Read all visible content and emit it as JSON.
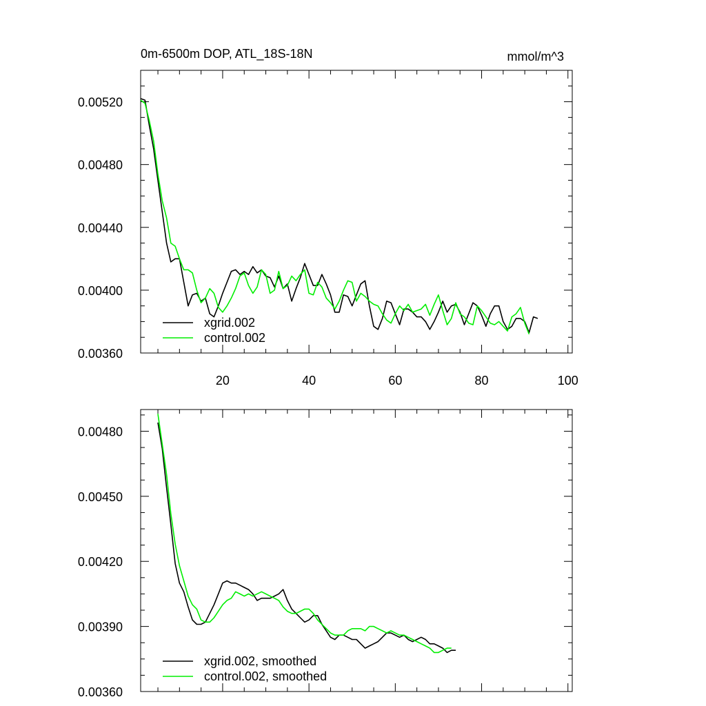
{
  "chart_data": [
    {
      "type": "line",
      "title": "0m-6500m DOP, ATL_18S-18N",
      "units": "mmol/m^3",
      "xlim": [
        1,
        101
      ],
      "ylim": [
        0.0036,
        0.0054
      ],
      "x_ticks": [
        20,
        40,
        60,
        80,
        100
      ],
      "x_tick_labels": [
        "20",
        "40",
        "60",
        "80",
        "100"
      ],
      "y_ticks": [
        0.0036,
        0.004,
        0.0044,
        0.0048,
        0.0052
      ],
      "y_tick_labels": [
        "0.00360",
        "0.00400",
        "0.00440",
        "0.00480",
        "0.00520"
      ],
      "legend_position": "bottom-left",
      "series": [
        {
          "name": "xgrid.002",
          "color": "#000000",
          "x_start": 1,
          "values": [
            0.00522,
            0.00521,
            0.00505,
            0.0049,
            0.0047,
            0.0045,
            0.0043,
            0.00418,
            0.0042,
            0.0042,
            0.00405,
            0.0039,
            0.00397,
            0.00398,
            0.00393,
            0.00395,
            0.00385,
            0.00383,
            0.0039,
            0.00398,
            0.00405,
            0.00412,
            0.00413,
            0.0041,
            0.00412,
            0.0041,
            0.00415,
            0.00411,
            0.00413,
            0.00409,
            0.00408,
            0.00402,
            0.00409,
            0.00401,
            0.00404,
            0.00393,
            0.00401,
            0.00408,
            0.00417,
            0.0041,
            0.00403,
            0.00403,
            0.0041,
            0.00404,
            0.00397,
            0.00386,
            0.00386,
            0.00397,
            0.00396,
            0.0039,
            0.00397,
            0.00404,
            0.00406,
            0.0039,
            0.00377,
            0.00375,
            0.00382,
            0.00393,
            0.00392,
            0.00385,
            0.00378,
            0.00388,
            0.00388,
            0.00386,
            0.00383,
            0.00383,
            0.0038,
            0.00375,
            0.0038,
            0.00386,
            0.00393,
            0.00386,
            0.0039,
            0.00391,
            0.00386,
            0.00378,
            0.00385,
            0.00392,
            0.0039,
            0.00384,
            0.00377,
            0.00385,
            0.0039,
            0.0039,
            0.0038,
            0.00375,
            0.00377,
            0.00382,
            0.00382,
            0.0038,
            0.00373,
            0.00383,
            0.00382
          ]
        },
        {
          "name": "control.002",
          "color": "#00ee00",
          "x_start": 1,
          "values": [
            0.00521,
            0.00519,
            0.00508,
            0.00495,
            0.00474,
            0.00457,
            0.00446,
            0.0043,
            0.00428,
            0.0042,
            0.00413,
            0.00413,
            0.00411,
            0.004,
            0.00392,
            0.00395,
            0.00401,
            0.00398,
            0.00389,
            0.00386,
            0.0039,
            0.00395,
            0.00401,
            0.00409,
            0.00411,
            0.00403,
            0.00398,
            0.00402,
            0.00413,
            0.0041,
            0.00398,
            0.004,
            0.00412,
            0.00401,
            0.00403,
            0.00409,
            0.00406,
            0.0041,
            0.00413,
            0.00398,
            0.00397,
            0.00405,
            0.00402,
            0.00395,
            0.00392,
            0.00388,
            0.00393,
            0.004,
            0.00406,
            0.00405,
            0.00393,
            0.00398,
            0.00396,
            0.00393,
            0.00391,
            0.0039,
            0.00385,
            0.00381,
            0.00379,
            0.00385,
            0.0039,
            0.00387,
            0.00391,
            0.00386,
            0.00387,
            0.00388,
            0.00391,
            0.00384,
            0.00391,
            0.00397,
            0.00387,
            0.00378,
            0.00382,
            0.00392,
            0.00385,
            0.00383,
            0.00379,
            0.00378,
            0.0039,
            0.00387,
            0.00383,
            0.00379,
            0.00378,
            0.0038,
            0.00377,
            0.00374,
            0.00383,
            0.00385,
            0.00389,
            0.00379,
            0.00372
          ]
        }
      ]
    },
    {
      "type": "line",
      "title": "",
      "xlim": [
        1,
        101
      ],
      "ylim": [
        0.0036,
        0.0049
      ],
      "x_ticks": [
        20,
        40,
        60,
        80,
        100
      ],
      "y_ticks": [
        0.0036,
        0.0039,
        0.0042,
        0.0045,
        0.0048
      ],
      "y_tick_labels": [
        "0.00360",
        "0.00390",
        "0.00420",
        "0.00450",
        "0.00480"
      ],
      "legend_position": "bottom-left",
      "series": [
        {
          "name": "xgrid.002, smoothed",
          "color": "#000000",
          "x_start": 5,
          "values": [
            0.00484,
            0.00472,
            0.00454,
            0.00437,
            0.00419,
            0.0041,
            0.00406,
            0.00399,
            0.00393,
            0.00391,
            0.00391,
            0.00392,
            0.00396,
            0.004,
            0.00405,
            0.0041,
            0.00411,
            0.0041,
            0.0041,
            0.00409,
            0.00408,
            0.00407,
            0.00405,
            0.00402,
            0.00403,
            0.00403,
            0.00403,
            0.00404,
            0.00405,
            0.00407,
            0.00402,
            0.00398,
            0.00396,
            0.00394,
            0.00392,
            0.00393,
            0.00395,
            0.00395,
            0.00391,
            0.00388,
            0.00385,
            0.00384,
            0.00386,
            0.00386,
            0.00385,
            0.00384,
            0.00384,
            0.00382,
            0.0038,
            0.00381,
            0.00382,
            0.00383,
            0.00385,
            0.00387,
            0.00387,
            0.00386,
            0.00385,
            0.00386,
            0.00384,
            0.00383,
            0.00384,
            0.00385,
            0.00384,
            0.00382,
            0.00382,
            0.00381,
            0.0038,
            0.00378,
            0.00379,
            0.00379
          ]
        },
        {
          "name": "control.002, smoothed",
          "color": "#00ee00",
          "x_start": 5,
          "values": [
            0.00488,
            0.00474,
            0.0046,
            0.00442,
            0.00428,
            0.00418,
            0.00411,
            0.00404,
            0.004,
            0.00398,
            0.00393,
            0.00392,
            0.00392,
            0.00394,
            0.00397,
            0.004,
            0.00402,
            0.00403,
            0.00406,
            0.00405,
            0.00404,
            0.00405,
            0.00404,
            0.00405,
            0.00406,
            0.00405,
            0.00404,
            0.00403,
            0.00402,
            0.00399,
            0.00397,
            0.00396,
            0.00396,
            0.00397,
            0.00398,
            0.00398,
            0.00396,
            0.00393,
            0.00391,
            0.00389,
            0.00387,
            0.00386,
            0.00386,
            0.00386,
            0.00388,
            0.00389,
            0.00389,
            0.00389,
            0.00388,
            0.0039,
            0.0039,
            0.00389,
            0.00388,
            0.00387,
            0.00388,
            0.00387,
            0.00386,
            0.00386,
            0.00385,
            0.00384,
            0.00383,
            0.00382,
            0.00381,
            0.0038,
            0.00378,
            0.00378,
            0.00379,
            0.0038,
            0.0038
          ]
        }
      ]
    }
  ]
}
